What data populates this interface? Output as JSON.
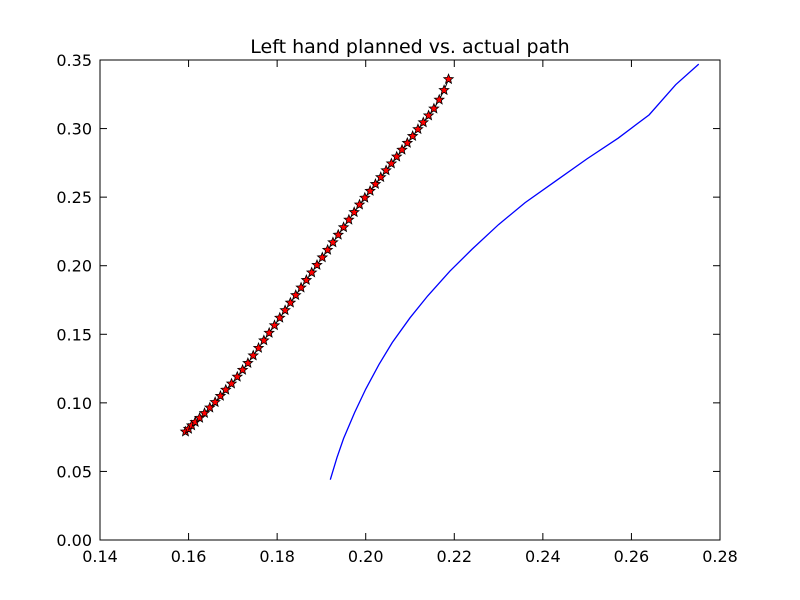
{
  "chart_data": {
    "type": "line",
    "title": "Left hand planned vs. actual path",
    "xlabel": "",
    "ylabel": "",
    "xlim": [
      0.14,
      0.28
    ],
    "ylim": [
      0.0,
      0.35
    ],
    "xticks": [
      "0.14",
      "0.16",
      "0.18",
      "0.20",
      "0.22",
      "0.24",
      "0.26",
      "0.28"
    ],
    "yticks": [
      "0.00",
      "0.05",
      "0.10",
      "0.15",
      "0.20",
      "0.25",
      "0.30",
      "0.35"
    ],
    "grid": false,
    "legend": false,
    "series": [
      {
        "style": "line",
        "color": "#0000ff",
        "x": [
          0.192,
          0.1935,
          0.195,
          0.1975,
          0.2,
          0.203,
          0.206,
          0.21,
          0.214,
          0.219,
          0.224,
          0.23,
          0.236,
          0.243,
          0.25,
          0.257,
          0.264,
          0.27,
          0.2752
        ],
        "y": [
          0.044,
          0.06,
          0.074,
          0.093,
          0.11,
          0.128,
          0.144,
          0.162,
          0.178,
          0.196,
          0.212,
          0.23,
          0.246,
          0.262,
          0.278,
          0.293,
          0.31,
          0.332,
          0.347
        ]
      },
      {
        "style": "markers",
        "marker": "star",
        "color": "#ff0000",
        "edge_color": "#000000",
        "x": [
          0.1593,
          0.16,
          0.1607,
          0.1615,
          0.1625,
          0.1636,
          0.1648,
          0.166,
          0.1672,
          0.1684,
          0.1697,
          0.171,
          0.1722,
          0.1734,
          0.1746,
          0.1758,
          0.177,
          0.1782,
          0.1794,
          0.1806,
          0.1818,
          0.183,
          0.1842,
          0.1854,
          0.1866,
          0.1878,
          0.189,
          0.1902,
          0.1914,
          0.1926,
          0.1938,
          0.195,
          0.1962,
          0.1974,
          0.1986,
          0.1998,
          0.201,
          0.2022,
          0.2034,
          0.2046,
          0.2058,
          0.207,
          0.2082,
          0.2094,
          0.2106,
          0.2118,
          0.213,
          0.2142,
          0.2154,
          0.2166,
          0.2177,
          0.2187
        ],
        "y": [
          0.079,
          0.081,
          0.0835,
          0.086,
          0.089,
          0.0925,
          0.0965,
          0.1005,
          0.105,
          0.1095,
          0.114,
          0.119,
          0.124,
          0.129,
          0.1345,
          0.14,
          0.1455,
          0.151,
          0.1565,
          0.162,
          0.1675,
          0.173,
          0.1785,
          0.184,
          0.1895,
          0.195,
          0.2005,
          0.206,
          0.2115,
          0.217,
          0.2225,
          0.228,
          0.2335,
          0.239,
          0.2445,
          0.2495,
          0.2545,
          0.2595,
          0.2645,
          0.2695,
          0.2745,
          0.2795,
          0.2845,
          0.2895,
          0.2945,
          0.2995,
          0.3045,
          0.3095,
          0.3145,
          0.321,
          0.328,
          0.336
        ]
      }
    ]
  }
}
